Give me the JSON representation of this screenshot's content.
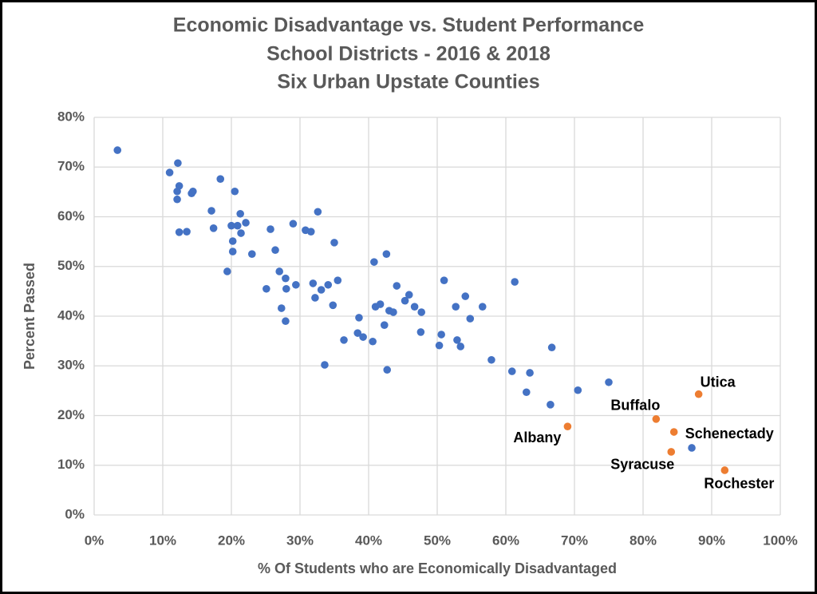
{
  "chart_data": {
    "type": "scatter",
    "title": [
      "Economic Disadvantage vs. Student Performance",
      "School Districts - 2016 & 2018",
      "Six Urban Upstate Counties"
    ],
    "x_label": "% Of Students who are Economically Disadvantaged",
    "y_label": "Percent Passed",
    "xlim": [
      0,
      100
    ],
    "ylim": [
      0,
      80
    ],
    "grid": true,
    "xticks": [
      {
        "value": 0,
        "label": "0%"
      },
      {
        "value": 10,
        "label": "10%"
      },
      {
        "value": 20,
        "label": "20%"
      },
      {
        "value": 30,
        "label": "30%"
      },
      {
        "value": 40,
        "label": "40%"
      },
      {
        "value": 50,
        "label": "50%"
      },
      {
        "value": 60,
        "label": "60%"
      },
      {
        "value": 70,
        "label": "70%"
      },
      {
        "value": 80,
        "label": "80%"
      },
      {
        "value": 90,
        "label": "90%"
      },
      {
        "value": 100,
        "label": "100%"
      }
    ],
    "yticks": [
      {
        "value": 0,
        "label": "0%"
      },
      {
        "value": 10,
        "label": "10%"
      },
      {
        "value": 20,
        "label": "20%"
      },
      {
        "value": 30,
        "label": "30%"
      },
      {
        "value": 40,
        "label": "40%"
      },
      {
        "value": 50,
        "label": "50%"
      },
      {
        "value": 60,
        "label": "60%"
      },
      {
        "value": 70,
        "label": "70%"
      },
      {
        "value": 80,
        "label": "80%"
      }
    ],
    "series": [
      {
        "color": "#4472c4",
        "x": [
          3.4,
          11.0,
          12.2,
          12.1,
          12.4,
          12.1,
          12.4,
          13.5,
          14.2,
          14.4,
          17.1,
          17.4,
          18.4,
          19.4,
          20.0,
          20.2,
          20.2,
          20.5,
          20.9,
          21.3,
          21.4,
          22.1,
          23.0,
          25.1,
          25.7,
          26.4,
          27.0,
          27.3,
          27.9,
          28.0,
          27.9,
          29.0,
          29.4,
          30.8,
          31.6,
          31.9,
          32.2,
          32.6,
          33.1,
          33.6,
          34.1,
          34.8,
          35.0,
          35.5,
          36.4,
          38.4,
          38.6,
          39.2,
          40.6,
          40.8,
          41.0,
          41.7,
          42.3,
          42.6,
          42.7,
          43.0,
          43.6,
          44.1,
          45.3,
          45.9,
          46.7,
          47.6,
          47.7,
          50.3,
          50.6,
          51.0,
          52.7,
          52.9,
          53.4,
          54.1,
          54.8,
          56.6,
          57.9,
          60.9,
          61.3,
          63.0,
          63.5,
          66.5,
          66.7,
          70.5,
          75.0,
          87.1
        ],
        "values": [
          73.4,
          68.9,
          70.8,
          65.1,
          66.2,
          63.5,
          56.9,
          57.0,
          64.7,
          65.1,
          61.2,
          57.7,
          67.6,
          49.0,
          58.2,
          55.1,
          53.0,
          65.1,
          58.2,
          60.6,
          56.7,
          58.8,
          52.5,
          45.5,
          57.5,
          53.3,
          49.0,
          41.6,
          47.6,
          45.5,
          39.0,
          58.6,
          46.3,
          57.3,
          57.0,
          46.6,
          43.7,
          61.0,
          45.3,
          30.2,
          46.3,
          42.2,
          54.8,
          47.2,
          35.2,
          36.6,
          39.7,
          35.8,
          34.9,
          50.9,
          41.9,
          42.4,
          38.2,
          52.5,
          29.2,
          41.1,
          40.8,
          46.1,
          43.1,
          44.3,
          41.9,
          36.8,
          40.8,
          34.1,
          36.3,
          47.2,
          41.9,
          35.2,
          33.9,
          44.0,
          39.5,
          41.9,
          31.2,
          28.9,
          46.9,
          24.7,
          28.6,
          22.2,
          33.7,
          25.1,
          26.7,
          13.5
        ]
      },
      {
        "color": "#ed7d31",
        "x": [
          69.0,
          81.9,
          88.1,
          84.5,
          84.1,
          91.9
        ],
        "values": [
          17.8,
          19.3,
          24.3,
          16.7,
          12.7,
          9.0
        ],
        "labels": [
          "Albany",
          "Buffalo",
          "Utica",
          "Schenectady",
          "Syracuse",
          "Rochester"
        ]
      }
    ]
  }
}
